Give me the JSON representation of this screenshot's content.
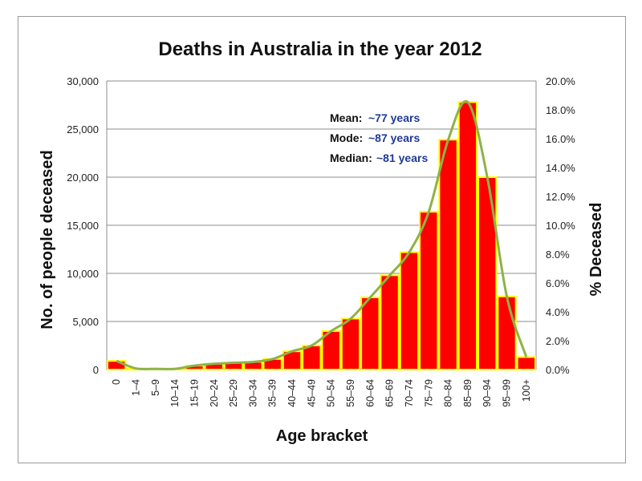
{
  "chart_data": {
    "type": "bar",
    "title": "Deaths in Australia in the year 2012",
    "xlabel": "Age bracket",
    "ylabel": "No. of people deceased",
    "y2label": "% Deceased",
    "categories": [
      "0",
      "1–4",
      "5–9",
      "10–14",
      "15–19",
      "20–24",
      "25–29",
      "30–34",
      "35–39",
      "40–44",
      "45–49",
      "50–54",
      "55–59",
      "60–64",
      "65–69",
      "70–74",
      "75–79",
      "80–84",
      "85–89",
      "90–94",
      "95–99",
      "100+"
    ],
    "series": [
      {
        "values": [
          900,
          120,
          70,
          80,
          400,
          600,
          700,
          800,
          1100,
          1900,
          2500,
          4000,
          5300,
          7500,
          9800,
          12200,
          16400,
          23900,
          27800,
          20000,
          7600,
          1300
        ]
      },
      {
        "values": [
          0.6,
          0.08,
          0.05,
          0.05,
          0.27,
          0.4,
          0.47,
          0.53,
          0.73,
          1.27,
          1.67,
          2.67,
          3.53,
          5.0,
          6.53,
          8.13,
          10.93,
          15.93,
          18.53,
          13.33,
          5.07,
          0.87
        ]
      }
    ],
    "ylim": [
      0,
      30000
    ],
    "yticks": [
      "0",
      "5,000",
      "10,000",
      "15,000",
      "20,000",
      "25,000",
      "30,000"
    ],
    "y2lim": [
      0,
      20
    ],
    "y2ticks": [
      "0.0%",
      "2.0%",
      "4.0%",
      "6.0%",
      "8.0%",
      "10.0%",
      "12.0%",
      "14.0%",
      "16.0%",
      "18.0%",
      "20.0%"
    ],
    "grid": true,
    "annotations": [
      {
        "label": "Mean:",
        "value": "~77 years"
      },
      {
        "label": "Mode:",
        "value": "~87 years"
      },
      {
        "label": "Median:",
        "value": "~81 years"
      }
    ],
    "colors": {
      "bar_fill": "#ff0000",
      "bar_edge": "#ffff00",
      "curve": "#8db347",
      "annotation_value": "#1f3a93",
      "grid": "#8c8c8c"
    }
  }
}
